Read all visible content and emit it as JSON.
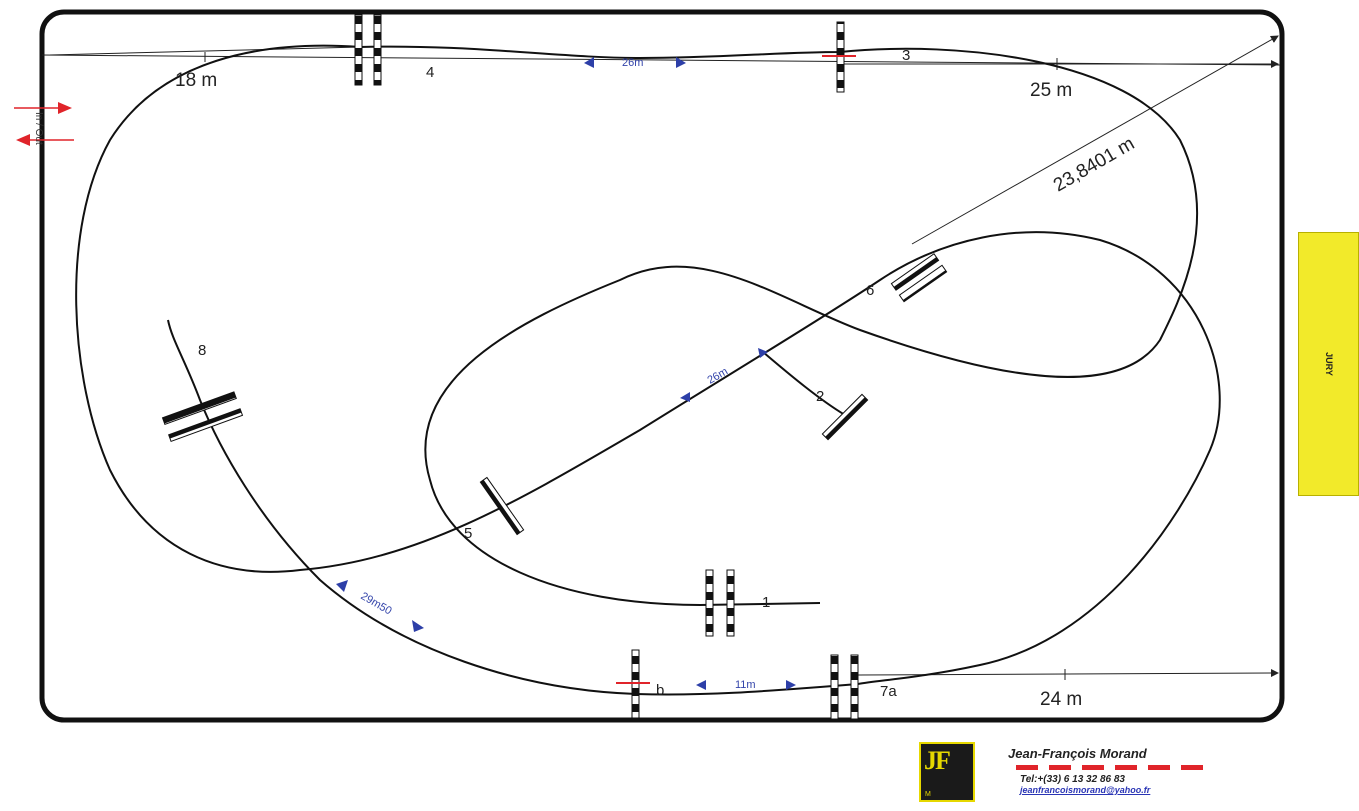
{
  "arena": {
    "dimensions": {
      "top_left": "18 m",
      "top_right": "25 m",
      "diagonal": "23,8401 m",
      "bottom_right": "24 m"
    },
    "distances": {
      "top": "26m",
      "center": "26m",
      "bottom_left": "29m50",
      "bottom": "11m"
    },
    "obstacles": {
      "o1": "1",
      "o2": "2",
      "o3": "3",
      "o4": "4",
      "o5": "5",
      "o6": "6",
      "o7a": "7a",
      "o7b": "b",
      "o8": "8"
    },
    "in_out_label": "In / Out"
  },
  "jury": {
    "label": "JURY"
  },
  "designer": {
    "name": "Jean-François Morand",
    "phone": "Tel:+(33) 6 13 32 86 83",
    "email": "jeanfrancoismorand@yahoo.fr",
    "logo_text": "JF",
    "logo_sub": "M"
  },
  "colors": {
    "accent_red": "#e0242a",
    "accent_blue": "#2d3fa8",
    "jury_yellow": "#f2ea2a",
    "logo_yellow": "#e6d800"
  }
}
